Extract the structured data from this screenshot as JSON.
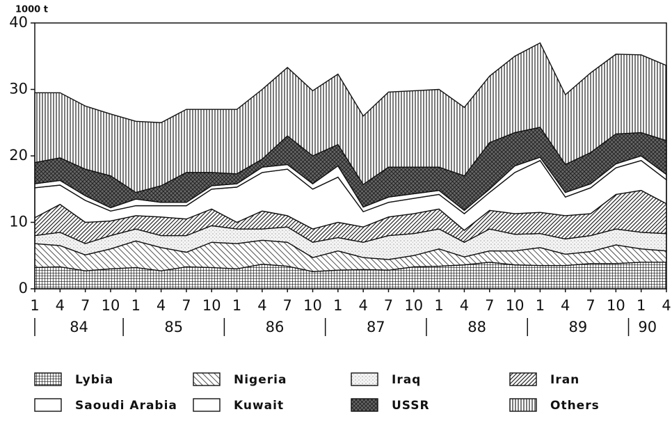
{
  "chart_data": {
    "type": "stacked-area",
    "unit_label": "1000 t",
    "categories": [
      "1",
      "4",
      "7",
      "10",
      "1",
      "4",
      "7",
      "10",
      "1",
      "4",
      "7",
      "10",
      "1",
      "4",
      "7",
      "10",
      "1",
      "4",
      "7",
      "10",
      "1",
      "4",
      "7",
      "10",
      "1",
      "4"
    ],
    "year_labels": [
      "84",
      "85",
      "86",
      "87",
      "88",
      "89",
      "90"
    ],
    "ylim": [
      0,
      40
    ],
    "yticks": [
      0,
      10,
      20,
      30,
      40
    ],
    "series": [
      {
        "name": "Lybia",
        "pattern": "grid",
        "values": [
          3.2,
          3.3,
          2.7,
          3,
          3.2,
          2.7,
          3.3,
          3.2,
          3,
          3.7,
          3.4,
          2.6,
          2.8,
          2.9,
          2.8,
          3.3,
          3.4,
          3.6,
          4,
          3.6,
          3.5,
          3.5,
          3.8,
          3.8,
          4,
          4
        ]
      },
      {
        "name": "Nigeria",
        "pattern": "diag-light",
        "values": [
          3.6,
          3.2,
          2.4,
          3,
          4,
          3.5,
          2.2,
          3.8,
          3.8,
          3.6,
          3.6,
          2.1,
          2.9,
          1.8,
          1.6,
          1.7,
          2.6,
          1.2,
          1.7,
          2.1,
          2.7,
          1.7,
          1.8,
          2.8,
          2,
          1.7
        ]
      },
      {
        "name": "Iraq",
        "pattern": "dots",
        "values": [
          1.2,
          2,
          1.7,
          2,
          1.8,
          1.8,
          2.5,
          2.5,
          2.2,
          1.7,
          2.3,
          2.3,
          2,
          2.3,
          3.6,
          3.3,
          3,
          2.2,
          3.3,
          2.5,
          2.1,
          2.3,
          2.4,
          2.4,
          2.5,
          2.6
        ]
      },
      {
        "name": "Iran",
        "pattern": "diag-dense",
        "values": [
          2.7,
          4.2,
          3.2,
          2.2,
          2,
          2.8,
          2.5,
          2.5,
          1,
          2.7,
          1.7,
          2,
          2.3,
          2.3,
          2.8,
          3,
          3,
          1.8,
          2.8,
          3.1,
          3.2,
          3.5,
          3.3,
          5.2,
          6.3,
          4.5
        ]
      },
      {
        "name": "Saoudi Arabia",
        "pattern": "none",
        "values": [
          4.5,
          2.9,
          3.3,
          1.5,
          1.5,
          1.7,
          2,
          3,
          5.3,
          5.8,
          7,
          6,
          6.8,
          2.3,
          2.2,
          2.3,
          2.2,
          2.5,
          2.7,
          6.2,
          7.8,
          2.8,
          3.9,
          4,
          4.5,
          3.6
        ]
      },
      {
        "name": "Kuwait",
        "pattern": "none",
        "values": [
          0.6,
          0.7,
          0.7,
          0.5,
          1,
          0.5,
          0.5,
          0.5,
          0.5,
          0.8,
          0.7,
          0.8,
          1.7,
          0.7,
          0.8,
          0.7,
          0.6,
          0.5,
          0.5,
          1,
          0.5,
          0.7,
          0.6,
          0.6,
          0.7,
          0.8
        ]
      },
      {
        "name": "USSR",
        "pattern": "crosshatch",
        "values": [
          3.2,
          3.4,
          4,
          4.8,
          1,
          2.5,
          4.5,
          2,
          1.5,
          1.2,
          4.3,
          4.2,
          3.2,
          3.4,
          4.5,
          4,
          3.5,
          5.2,
          7,
          5,
          4.5,
          4.2,
          4.7,
          4.5,
          3.5,
          5.1
        ]
      },
      {
        "name": "Others",
        "pattern": "vertical",
        "values": [
          10.5,
          9.8,
          9.5,
          9.3,
          10.7,
          9.5,
          9.5,
          9.5,
          9.7,
          10.5,
          10.3,
          9.8,
          10.6,
          10.3,
          11.3,
          11.5,
          11.7,
          10.3,
          10,
          11.5,
          12.7,
          10.5,
          12,
          12,
          11.7,
          11.3
        ]
      }
    ]
  }
}
